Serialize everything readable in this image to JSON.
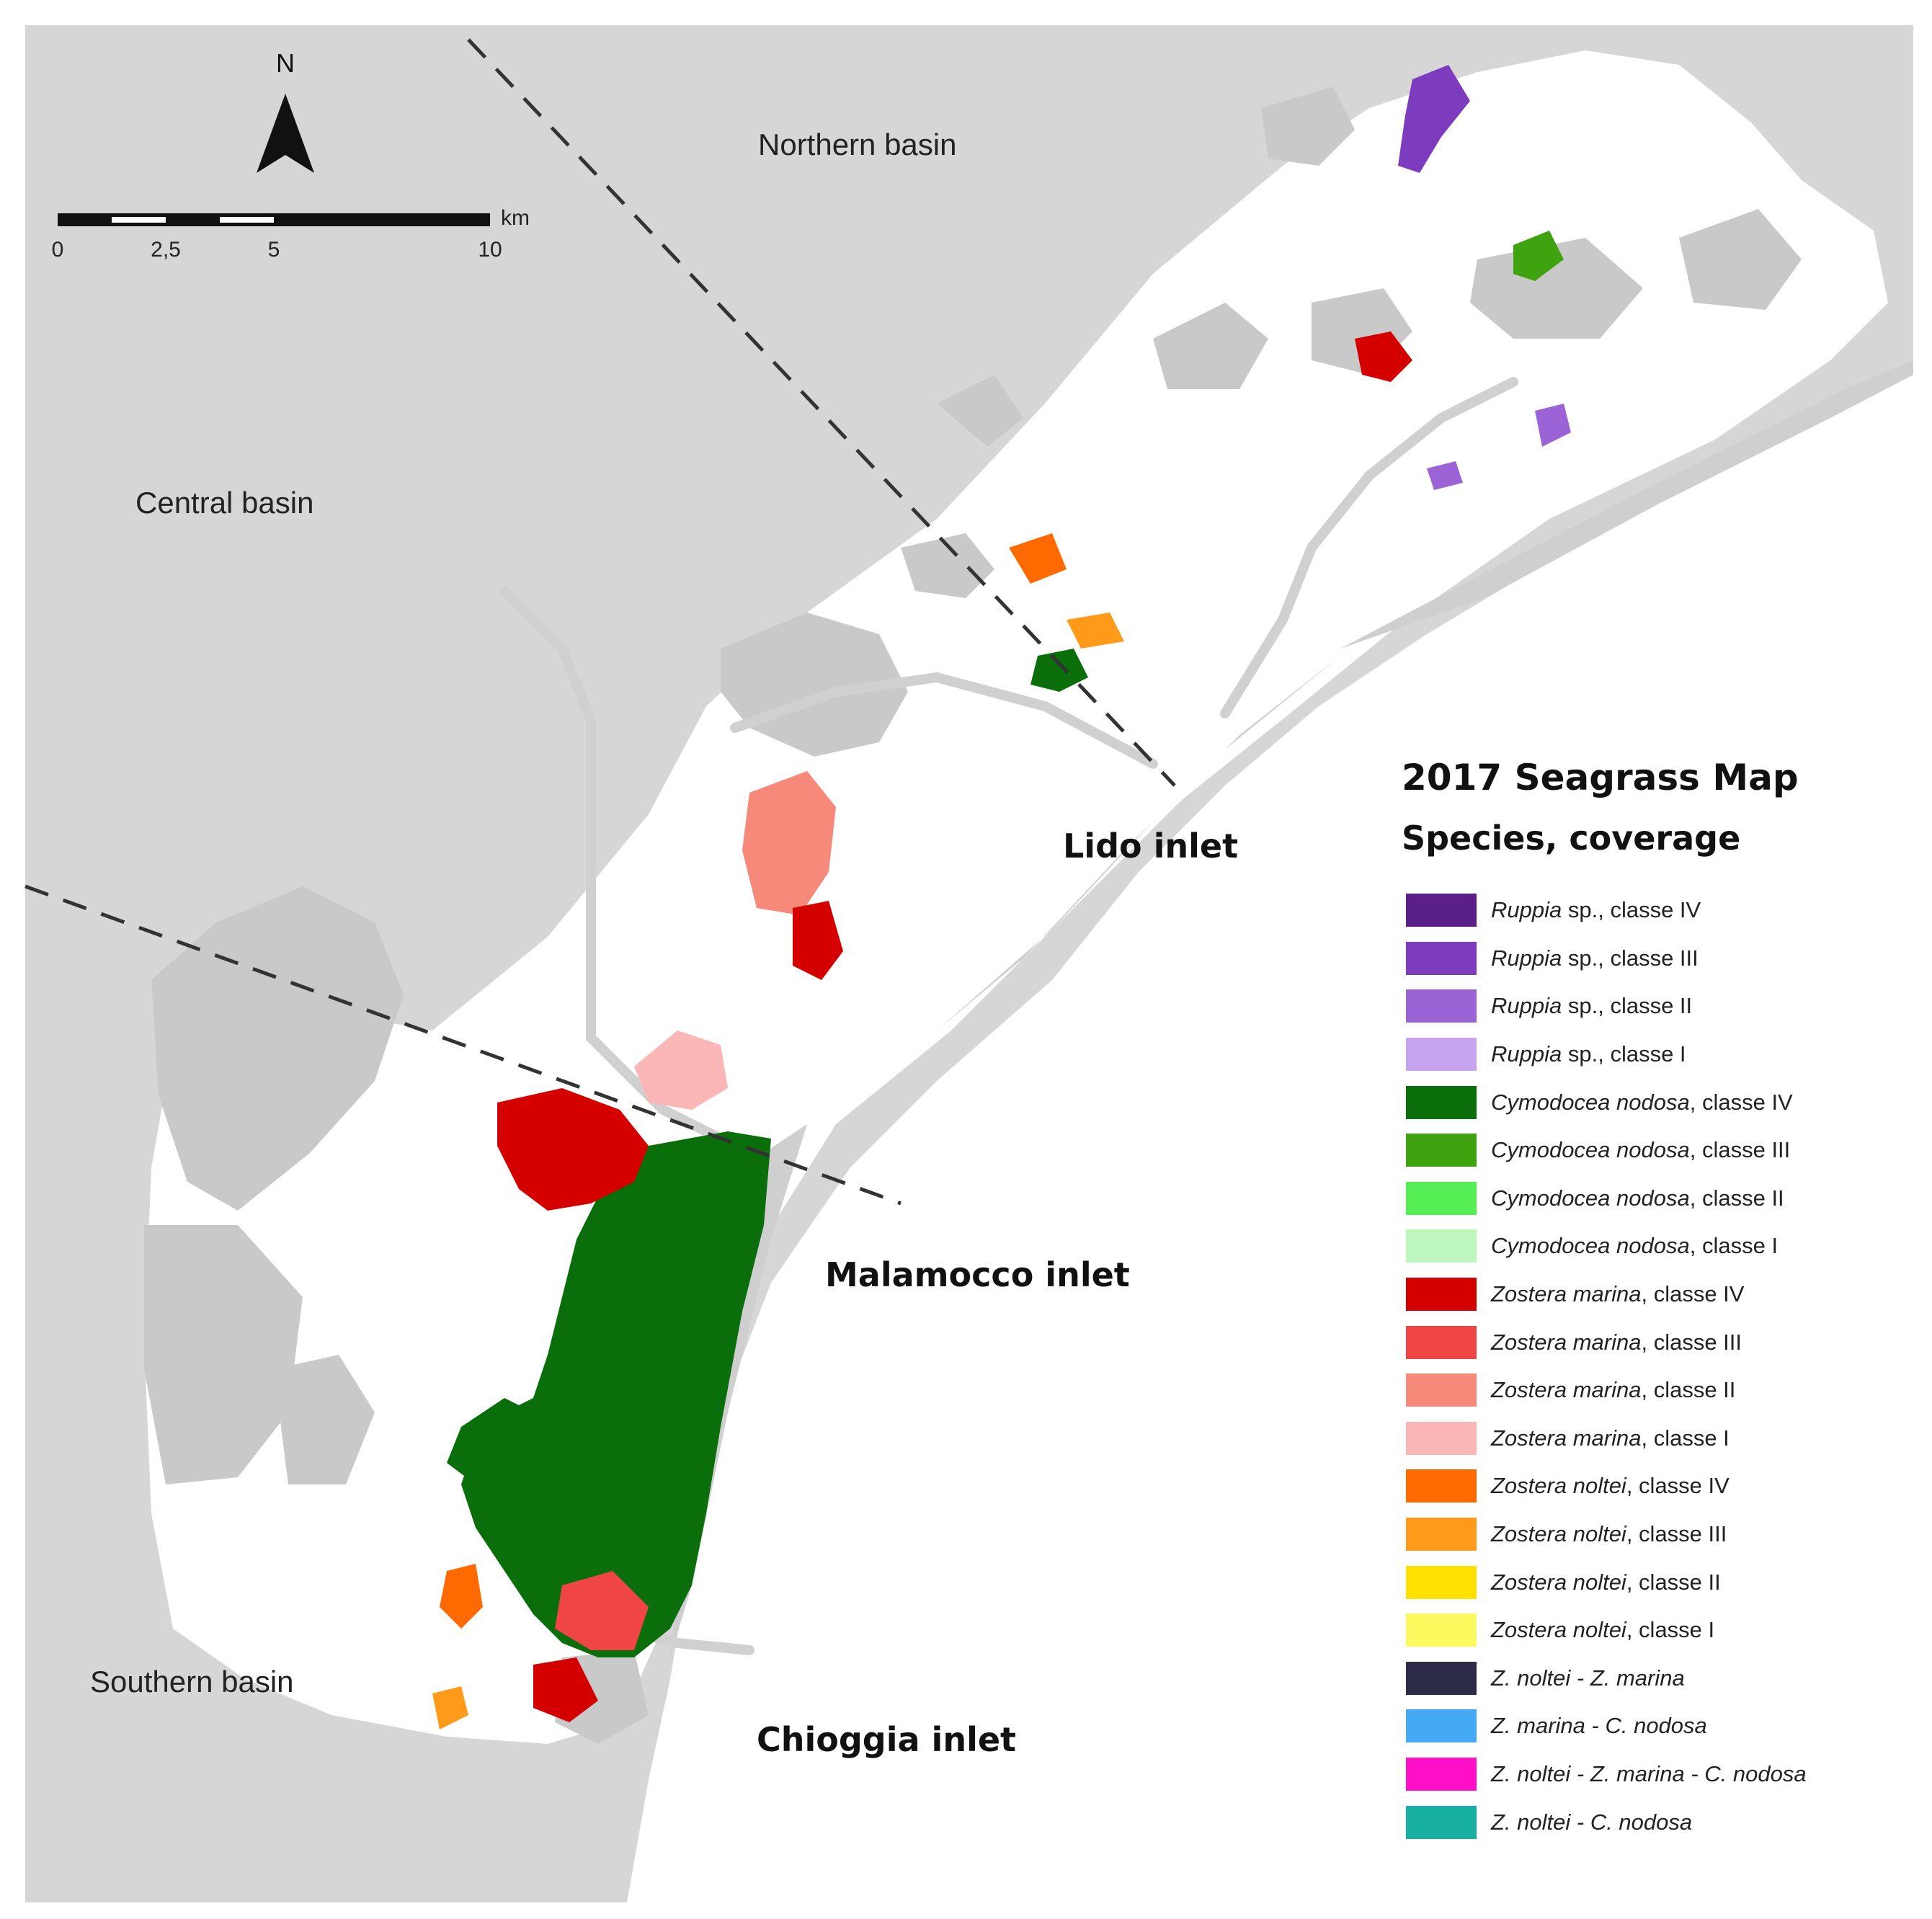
{
  "map": {
    "north_label": "N",
    "scale": {
      "unit": "km",
      "ticks": [
        "0",
        "2,5",
        "5",
        "10"
      ]
    },
    "regions": {
      "northern": "Northern basin",
      "central": "Central basin",
      "southern": "Southern basin"
    },
    "inlets": {
      "lido": "Lido inlet",
      "malamocco": "Malamocco inlet",
      "chioggia": "Chioggia inlet"
    },
    "colors": {
      "sea": "#d6d6d6",
      "lagoon": "#ffffff",
      "land": "#c8c8c8",
      "channel": "#cfcfcf"
    }
  },
  "legend": {
    "title": "2017 Seagrass Map",
    "subtitle": "Species, coverage",
    "items": [
      {
        "species": "Ruppia",
        "rest": " sp., classe IV",
        "color": "#5b1f8a"
      },
      {
        "species": "Ruppia",
        "rest": " sp., classe III",
        "color": "#7d3bbd"
      },
      {
        "species": "Ruppia",
        "rest": " sp., classe II",
        "color": "#9b63d6"
      },
      {
        "species": "Ruppia",
        "rest": " sp., classe I",
        "color": "#c8a3ef"
      },
      {
        "species": "Cymodocea nodosa",
        "rest": ", classe IV",
        "color": "#0a6e0a"
      },
      {
        "species": "Cymodocea nodosa",
        "rest": ", classe III",
        "color": "#3fa30f"
      },
      {
        "species": "Cymodocea nodosa",
        "rest": ", classe II",
        "color": "#55ee55"
      },
      {
        "species": "Cymodocea nodosa",
        "rest": ", classe I",
        "color": "#bdf7bd"
      },
      {
        "species": "Zostera marina",
        "rest": ", classe IV",
        "color": "#d40000"
      },
      {
        "species": "Zostera marina",
        "rest": ", classe III",
        "color": "#f04545"
      },
      {
        "species": "Zostera marina",
        "rest": ", classe II",
        "color": "#f7897b"
      },
      {
        "species": "Zostera marina",
        "rest": ", classe I",
        "color": "#fbb6b6"
      },
      {
        "species": "Zostera noltei",
        "rest": ", classe IV",
        "color": "#ff6a00"
      },
      {
        "species": "Zostera noltei",
        "rest": ", classe III",
        "color": "#ff9a1a"
      },
      {
        "species": "Zostera noltei",
        "rest": ", classe II",
        "color": "#ffe000"
      },
      {
        "species": "Zostera noltei",
        "rest": ", classe I",
        "color": "#fbfb60"
      },
      {
        "species": "Z. noltei - Z. marina",
        "rest": "",
        "color": "#2c2c48"
      },
      {
        "species": "Z. marina - C. nodosa",
        "rest": "",
        "color": "#45aaf5"
      },
      {
        "species": "Z. noltei - Z. marina - C. nodosa",
        "rest": "",
        "color": "#ff10c8"
      },
      {
        "species": "Z. noltei - C. nodosa",
        "rest": "",
        "color": "#19b0a4"
      }
    ]
  }
}
